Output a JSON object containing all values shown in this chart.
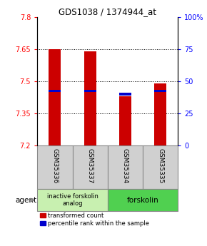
{
  "title": "GDS1038 / 1374944_at",
  "categories": [
    "GSM35336",
    "GSM35337",
    "GSM35334",
    "GSM35335"
  ],
  "red_values": [
    7.65,
    7.64,
    7.43,
    7.49
  ],
  "blue_values": [
    7.455,
    7.455,
    7.44,
    7.455
  ],
  "ylim_left": [
    7.2,
    7.8
  ],
  "ylim_right": [
    0,
    100
  ],
  "yticks_left": [
    7.2,
    7.35,
    7.5,
    7.65,
    7.8
  ],
  "yticks_right": [
    0,
    25,
    50,
    75,
    100
  ],
  "ytick_labels_left": [
    "7.2",
    "7.35",
    "7.5",
    "7.65",
    "7.8"
  ],
  "ytick_labels_right": [
    "0",
    "25",
    "50",
    "75",
    "100%"
  ],
  "hgrid_values": [
    7.35,
    7.5,
    7.65
  ],
  "bar_color": "#cc0000",
  "blue_color": "#0000cc",
  "group1_label": "inactive forskolin\nanalog",
  "group2_label": "forskolin",
  "group1_color": "#c8f0b0",
  "group2_color": "#50d050",
  "agent_label": "agent",
  "legend_red": "transformed count",
  "legend_blue": "percentile rank within the sample",
  "bar_width": 0.35,
  "blue_bar_height": 0.012,
  "label_bg_color": "#d0d0d0",
  "spine_color": "#888888"
}
